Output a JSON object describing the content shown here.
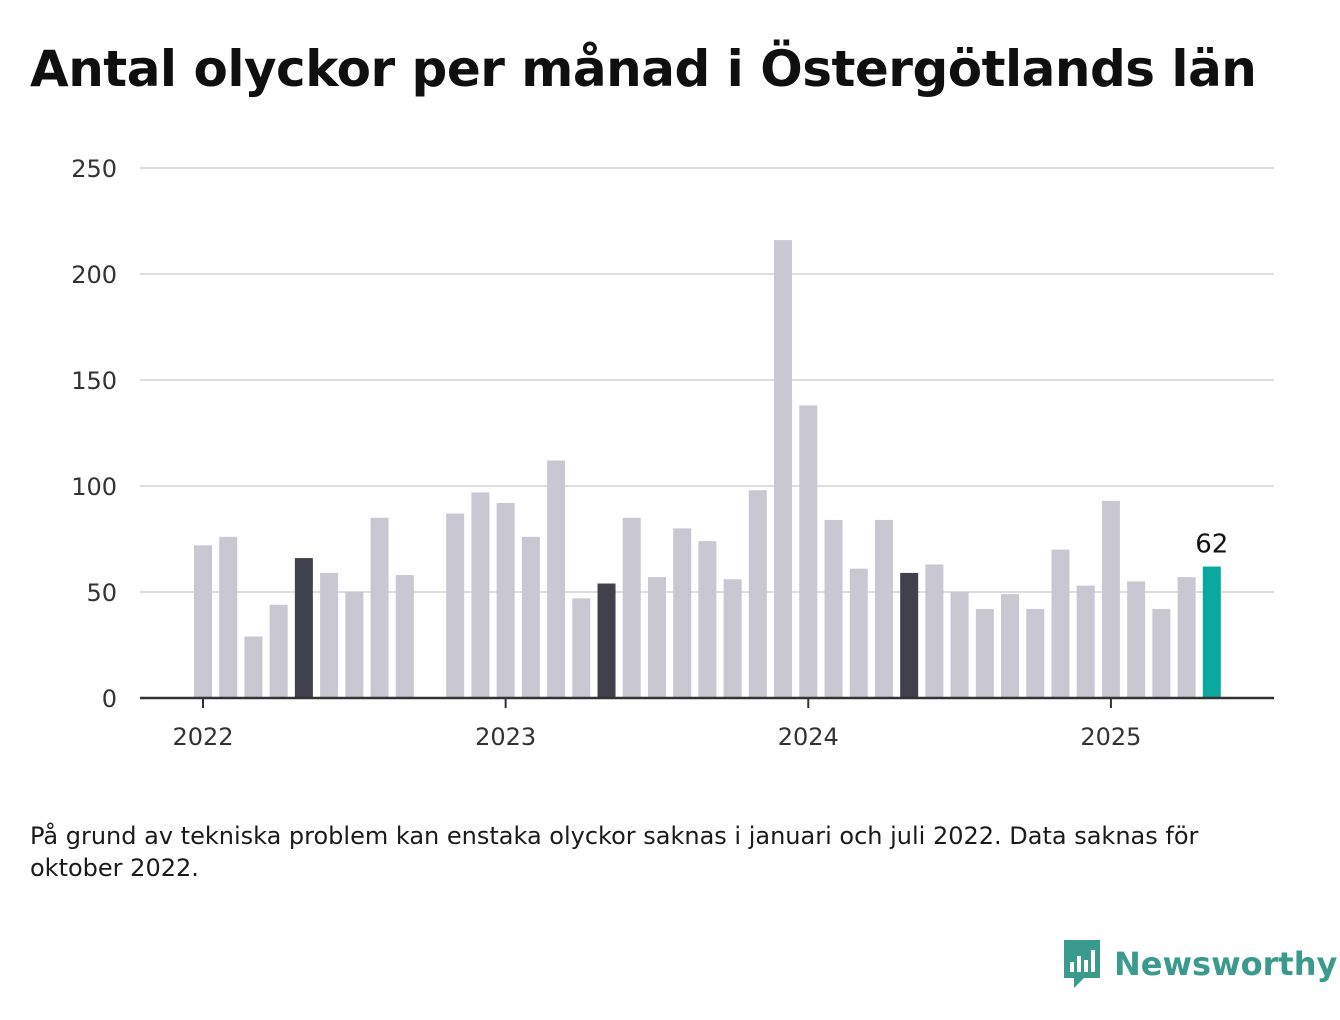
{
  "title": "Antal olyckor per månad i Östergötlands län",
  "footnote": "På grund av tekniska problem kan enstaka olyckor saknas i januari och juli 2022. Data saknas för oktober 2022.",
  "brand": {
    "name": "Newsworthy",
    "color": "#3a9a8e"
  },
  "colors": {
    "default": "#c8c7d2",
    "highlight": "#41404d",
    "latest": "#0aa89e",
    "grid": "#dddddd",
    "axis": "#333333"
  },
  "chart_data": {
    "type": "bar",
    "ylim": [
      0,
      250
    ],
    "yticks": [
      0,
      50,
      100,
      150,
      200,
      250
    ],
    "grid": true,
    "xticks": [
      {
        "label": "2022",
        "month": "2022-01"
      },
      {
        "label": "2023",
        "month": "2023-01"
      },
      {
        "label": "2024",
        "month": "2024-01"
      },
      {
        "label": "2025",
        "month": "2025-01"
      }
    ],
    "bars": [
      {
        "month": "2022-01",
        "value": 72
      },
      {
        "month": "2022-02",
        "value": 76
      },
      {
        "month": "2022-03",
        "value": 29
      },
      {
        "month": "2022-04",
        "value": 44
      },
      {
        "month": "2022-05",
        "value": 66,
        "highlight": true
      },
      {
        "month": "2022-06",
        "value": 59
      },
      {
        "month": "2022-07",
        "value": 50
      },
      {
        "month": "2022-08",
        "value": 85
      },
      {
        "month": "2022-09",
        "value": 58
      },
      {
        "month": "2022-10",
        "value": null
      },
      {
        "month": "2022-11",
        "value": 87
      },
      {
        "month": "2022-12",
        "value": 97
      },
      {
        "month": "2023-01",
        "value": 92
      },
      {
        "month": "2023-02",
        "value": 76
      },
      {
        "month": "2023-03",
        "value": 112
      },
      {
        "month": "2023-04",
        "value": 47
      },
      {
        "month": "2023-05",
        "value": 54,
        "highlight": true
      },
      {
        "month": "2023-06",
        "value": 85
      },
      {
        "month": "2023-07",
        "value": 57
      },
      {
        "month": "2023-08",
        "value": 80
      },
      {
        "month": "2023-09",
        "value": 74
      },
      {
        "month": "2023-10",
        "value": 56
      },
      {
        "month": "2023-11",
        "value": 98
      },
      {
        "month": "2023-12",
        "value": 216
      },
      {
        "month": "2024-01",
        "value": 138
      },
      {
        "month": "2024-02",
        "value": 84
      },
      {
        "month": "2024-03",
        "value": 61
      },
      {
        "month": "2024-04",
        "value": 84
      },
      {
        "month": "2024-05",
        "value": 59,
        "highlight": true
      },
      {
        "month": "2024-06",
        "value": 63
      },
      {
        "month": "2024-07",
        "value": 50
      },
      {
        "month": "2024-08",
        "value": 42
      },
      {
        "month": "2024-09",
        "value": 49
      },
      {
        "month": "2024-10",
        "value": 42
      },
      {
        "month": "2024-11",
        "value": 70
      },
      {
        "month": "2024-12",
        "value": 53
      },
      {
        "month": "2025-01",
        "value": 93
      },
      {
        "month": "2025-02",
        "value": 55
      },
      {
        "month": "2025-03",
        "value": 42
      },
      {
        "month": "2025-04",
        "value": 57
      },
      {
        "month": "2025-05",
        "value": 62,
        "latest": true,
        "label": "62"
      }
    ]
  }
}
